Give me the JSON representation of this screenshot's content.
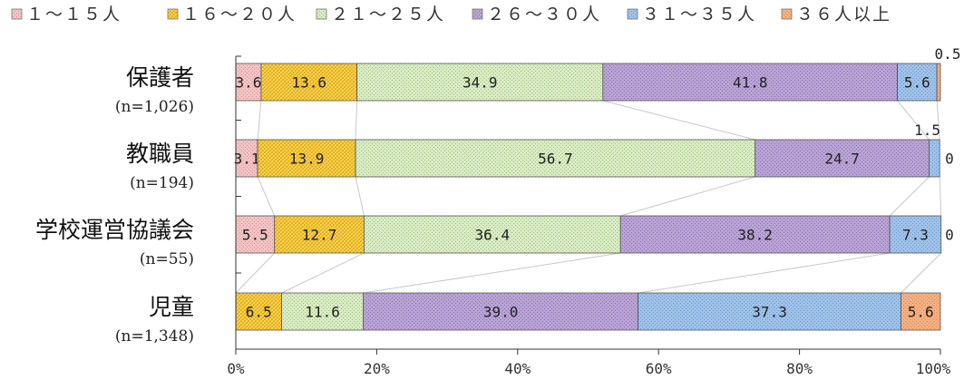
{
  "chart_data": {
    "type": "bar",
    "orientation": "horizontal",
    "stacked": "percent",
    "title": "",
    "xlabel": "",
    "ylabel": "",
    "xlim": [
      0,
      100
    ],
    "x_ticks": [
      "0%",
      "20%",
      "40%",
      "60%",
      "80%",
      "100%"
    ],
    "legend_position": "top",
    "grid": false,
    "categories": [
      {
        "name": "保護者",
        "n": "(n=1,026)"
      },
      {
        "name": "教職員",
        "n": "(n=194)"
      },
      {
        "name": "学校運営協議会",
        "n": "(n=55)"
      },
      {
        "name": "児童",
        "n": "(n=1,348)"
      }
    ],
    "series": [
      {
        "name": "１～１５人",
        "color": "#f2c4c4",
        "values": [
          3.6,
          3.1,
          5.5,
          0.0
        ],
        "labels": [
          "3.6",
          "3.1",
          "5.5",
          ""
        ]
      },
      {
        "name": "１６～２０人",
        "color": "#ffd966",
        "values": [
          13.6,
          13.9,
          12.7,
          6.5
        ],
        "labels": [
          "13.6",
          "13.9",
          "12.7",
          "6.5"
        ]
      },
      {
        "name": "２１～２５人",
        "color": "#d9ebc4",
        "values": [
          34.9,
          56.7,
          36.4,
          11.6
        ],
        "labels": [
          "34.9",
          "56.7",
          "36.4",
          "11.6"
        ]
      },
      {
        "name": "２６～３０人",
        "color": "#b9a3d4",
        "values": [
          41.8,
          24.7,
          38.2,
          39.0
        ],
        "labels": [
          "41.8",
          "24.7",
          "38.2",
          "39.0"
        ]
      },
      {
        "name": "３１～３５人",
        "color": "#9fc2e8",
        "values": [
          5.6,
          1.5,
          7.3,
          37.3
        ],
        "labels": [
          "5.6",
          "1.5",
          "7.3",
          "37.3"
        ]
      },
      {
        "name": "３６人以上",
        "color": "#f4b183",
        "values": [
          0.5,
          0.0,
          0.0,
          5.6
        ],
        "labels": [
          "0.5",
          "0",
          "0",
          "5.6"
        ]
      }
    ]
  }
}
